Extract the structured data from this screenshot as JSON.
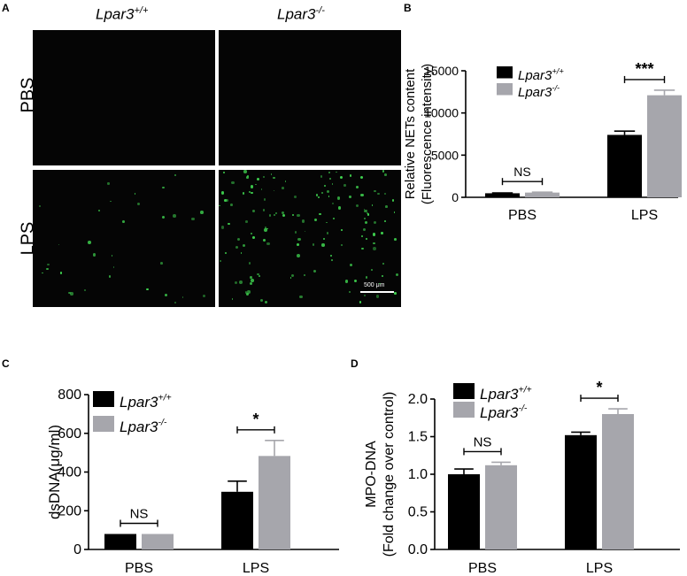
{
  "panels": {
    "A": "A",
    "B": "B",
    "C": "C",
    "D": "D"
  },
  "microscopy": {
    "col_headers": [
      {
        "base": "Lpar3",
        "sup": "+/+"
      },
      {
        "base": "Lpar3",
        "sup": "-/-"
      }
    ],
    "row_labels": [
      "PBS",
      "LPS"
    ],
    "scale_bar": "500 μm",
    "dot_color": "#3fd24f",
    "background": "#050505"
  },
  "colors": {
    "wt": "#000000",
    "ko": "#a6a6ac"
  },
  "chart_data": [
    {
      "type": "bar",
      "panel": "B",
      "categories": [
        "PBS",
        "LPS"
      ],
      "series": [
        {
          "name": "Lpar3+/+",
          "values": [
            480,
            7400
          ],
          "errors": [
            40,
            450
          ],
          "color": "#000000"
        },
        {
          "name": "Lpar3-/-",
          "values": [
            560,
            12100
          ],
          "errors": [
            50,
            600
          ],
          "color": "#a6a6ac"
        }
      ],
      "ylabel_lines": [
        "Relative NETs content",
        "(Fluorescence intensity)"
      ],
      "ylim": [
        0,
        15000
      ],
      "yticks": [
        0,
        5000,
        10000,
        15000
      ],
      "significance": [
        "NS",
        "***"
      ],
      "legend": "top-left"
    },
    {
      "type": "bar",
      "panel": "C",
      "categories": [
        "PBS",
        "LPS"
      ],
      "series": [
        {
          "name": "Lpar3+/+",
          "values": [
            80,
            298
          ],
          "errors": [
            0,
            55
          ],
          "color": "#000000"
        },
        {
          "name": "Lpar3-/-",
          "values": [
            80,
            483
          ],
          "errors": [
            0,
            80
          ],
          "color": "#a6a6ac"
        }
      ],
      "ylabel_lines": [
        "dsDNA(μg/ml)"
      ],
      "ylim": [
        0,
        800
      ],
      "yticks": [
        0,
        200,
        400,
        600,
        800
      ],
      "significance": [
        "NS",
        "*"
      ],
      "legend": "top-left"
    },
    {
      "type": "bar",
      "panel": "D",
      "categories": [
        "PBS",
        "LPS"
      ],
      "series": [
        {
          "name": "Lpar3+/+",
          "values": [
            1.0,
            1.52
          ],
          "errors": [
            0.07,
            0.04
          ],
          "color": "#000000"
        },
        {
          "name": "Lpar3-/-",
          "values": [
            1.12,
            1.8
          ],
          "errors": [
            0.04,
            0.07
          ],
          "color": "#a6a6ac"
        }
      ],
      "ylabel_lines": [
        "MPO-DNA",
        "(Fold change over control)"
      ],
      "ylim": [
        0,
        2.0
      ],
      "yticks": [
        "0.0",
        "0.5",
        "1.0",
        "1.5",
        "2.0"
      ],
      "significance": [
        "NS",
        "*"
      ],
      "legend": "top-left"
    }
  ]
}
